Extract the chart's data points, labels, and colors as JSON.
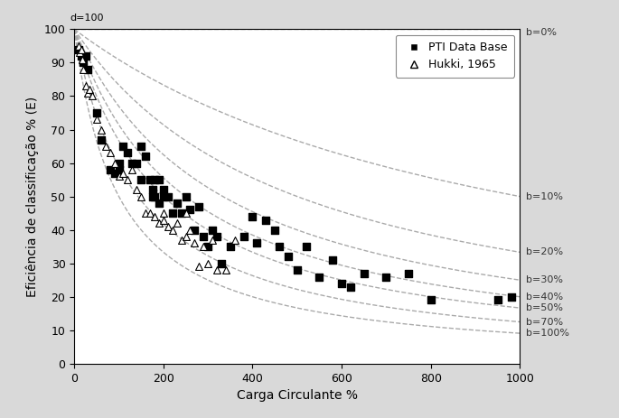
{
  "xlabel": "Carga Circulante %",
  "ylabel": "Eficiência de classificação % (E)",
  "xlim": [
    0,
    1000
  ],
  "ylim": [
    0,
    100
  ],
  "xticks": [
    0,
    200,
    400,
    600,
    800,
    1000
  ],
  "yticks": [
    0,
    10,
    20,
    30,
    40,
    50,
    60,
    70,
    80,
    90,
    100
  ],
  "d_label": "d=100",
  "b_values": [
    0,
    10,
    20,
    30,
    40,
    50,
    70,
    100
  ],
  "b_label_y_at_CL1000": [
    99.0,
    50.0,
    33.3,
    25.0,
    20.0,
    16.7,
    12.5,
    9.1
  ],
  "b_labels": [
    "b=0%",
    "b=10%",
    "b=20%",
    "b=30%",
    "b=40%",
    "b=50%",
    "b=70%",
    "b=100%"
  ],
  "curve_color": "#aaaaaa",
  "curve_linestyle": "--",
  "curve_linewidth": 1.0,
  "PTI_data": [
    [
      10,
      94
    ],
    [
      15,
      92
    ],
    [
      20,
      90
    ],
    [
      25,
      92
    ],
    [
      30,
      88
    ],
    [
      50,
      75
    ],
    [
      60,
      67
    ],
    [
      80,
      58
    ],
    [
      90,
      57
    ],
    [
      100,
      60
    ],
    [
      100,
      58
    ],
    [
      110,
      65
    ],
    [
      120,
      63
    ],
    [
      130,
      60
    ],
    [
      140,
      60
    ],
    [
      150,
      65
    ],
    [
      150,
      55
    ],
    [
      160,
      62
    ],
    [
      170,
      55
    ],
    [
      175,
      50
    ],
    [
      175,
      52
    ],
    [
      180,
      55
    ],
    [
      180,
      50
    ],
    [
      190,
      55
    ],
    [
      190,
      48
    ],
    [
      200,
      50
    ],
    [
      200,
      52
    ],
    [
      210,
      50
    ],
    [
      220,
      45
    ],
    [
      230,
      48
    ],
    [
      240,
      45
    ],
    [
      250,
      50
    ],
    [
      260,
      46
    ],
    [
      270,
      40
    ],
    [
      280,
      47
    ],
    [
      290,
      38
    ],
    [
      300,
      35
    ],
    [
      310,
      40
    ],
    [
      320,
      38
    ],
    [
      330,
      30
    ],
    [
      350,
      35
    ],
    [
      380,
      38
    ],
    [
      400,
      44
    ],
    [
      410,
      36
    ],
    [
      430,
      43
    ],
    [
      450,
      40
    ],
    [
      460,
      35
    ],
    [
      480,
      32
    ],
    [
      500,
      28
    ],
    [
      520,
      35
    ],
    [
      550,
      26
    ],
    [
      580,
      31
    ],
    [
      600,
      24
    ],
    [
      620,
      23
    ],
    [
      650,
      27
    ],
    [
      700,
      26
    ],
    [
      750,
      27
    ],
    [
      800,
      19
    ],
    [
      950,
      19
    ],
    [
      980,
      20
    ]
  ],
  "Hukki_data": [
    [
      10,
      95
    ],
    [
      12,
      93
    ],
    [
      15,
      94
    ],
    [
      18,
      91
    ],
    [
      20,
      88
    ],
    [
      25,
      83
    ],
    [
      30,
      81
    ],
    [
      35,
      82
    ],
    [
      40,
      80
    ],
    [
      50,
      73
    ],
    [
      60,
      70
    ],
    [
      70,
      65
    ],
    [
      80,
      63
    ],
    [
      90,
      60
    ],
    [
      100,
      56
    ],
    [
      110,
      57
    ],
    [
      120,
      55
    ],
    [
      130,
      58
    ],
    [
      140,
      52
    ],
    [
      150,
      50
    ],
    [
      160,
      45
    ],
    [
      170,
      45
    ],
    [
      180,
      44
    ],
    [
      190,
      42
    ],
    [
      200,
      45
    ],
    [
      200,
      43
    ],
    [
      210,
      41
    ],
    [
      220,
      40
    ],
    [
      230,
      42
    ],
    [
      240,
      37
    ],
    [
      250,
      38
    ],
    [
      250,
      45
    ],
    [
      260,
      40
    ],
    [
      270,
      36
    ],
    [
      280,
      29
    ],
    [
      290,
      35
    ],
    [
      300,
      30
    ],
    [
      310,
      37
    ],
    [
      320,
      28
    ],
    [
      340,
      28
    ],
    [
      360,
      37
    ]
  ],
  "PTI_marker": "s",
  "Hukki_marker": "^",
  "PTI_color": "#000000",
  "Hukki_facecolor": "white",
  "marker_size_PTI": 28,
  "marker_size_Hukki": 32,
  "bg_color": "#d9d9d9",
  "plot_bg_color": "#ffffff",
  "grid_color": "#ffffff",
  "grid_linewidth": 1.0,
  "font_size": 9,
  "label_font_size": 10,
  "tick_font_size": 9,
  "b_label_fontsize": 8
}
